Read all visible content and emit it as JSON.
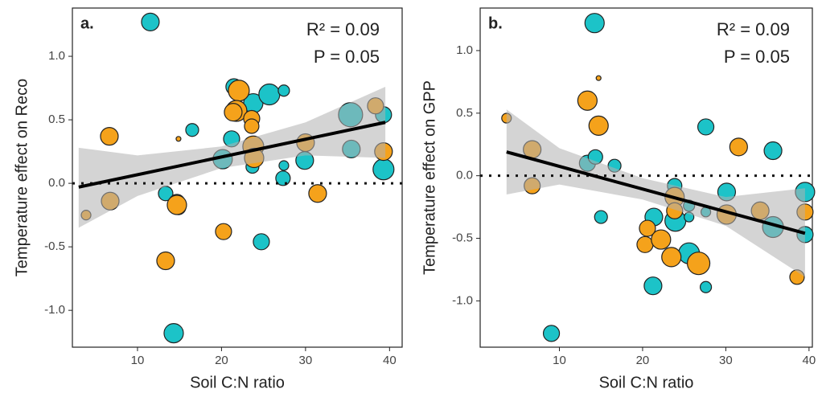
{
  "chart_data": [
    {
      "type": "scatter",
      "label": "a.",
      "ylabel": "Temperature effect on Reco",
      "xlabel": "Soil C:N ratio",
      "annotations": [
        "R² = 0.09",
        "P = 0.05"
      ],
      "xlim": [
        2.25,
        41.5
      ],
      "ylim": [
        -1.29,
        1.38
      ],
      "xticks": [
        10,
        20,
        30,
        40
      ],
      "yticks": [
        {
          "value": -1,
          "label": "-1.0"
        },
        {
          "value": -0.5,
          "label": "-0.5"
        },
        {
          "value": 0,
          "label": "0.0"
        },
        {
          "value": 0.5,
          "label": "0.5"
        },
        {
          "value": 1,
          "label": "1.0"
        }
      ],
      "hline": 0,
      "series": [
        {
          "color": "#1cc3c8",
          "x": [
            11.53,
            21.48,
            23.78,
            25.69,
            27.42,
            16.51,
            21.2,
            20.14,
            23.68,
            27.42,
            27.32,
            29.9,
            35.36,
            35.45,
            39.28,
            39.28,
            13.35,
            14.69,
            14.88,
            24.74,
            14.31
          ],
          "y": [
            1.27,
            0.76,
            0.63,
            0.7,
            0.73,
            0.42,
            0.35,
            0.19,
            0.13,
            0.14,
            0.04,
            0.18,
            0.54,
            0.27,
            0.54,
            0.11,
            -0.08,
            -0.15,
            -0.19,
            -0.46,
            -1.18
          ],
          "sizes": [
            11,
            10,
            12,
            13,
            7,
            8,
            10,
            12,
            8,
            6,
            9,
            11,
            15,
            11,
            10,
            13,
            9,
            10,
            9,
            10,
            12
          ]
        },
        {
          "color": "#f5a21b",
          "x": [
            6.65,
            3.88,
            6.75,
            14.69,
            13.35,
            20.24,
            14.88,
            22.06,
            21.77,
            23.59,
            23.78,
            23.88,
            21.39,
            30,
            31.44,
            38.33,
            39.28,
            23.59
          ],
          "y": [
            0.37,
            -0.25,
            -0.14,
            -0.17,
            -0.61,
            -0.38,
            0.35,
            0.73,
            0.57,
            0.51,
            0.29,
            0.2,
            0.56,
            0.32,
            -0.08,
            0.61,
            0.25,
            0.45
          ],
          "sizes": [
            11,
            6,
            11,
            12,
            11,
            10,
            3,
            13,
            13,
            10,
            13,
            12,
            11,
            11,
            11,
            10,
            11,
            9
          ]
        }
      ],
      "fit": {
        "x": [
          3,
          39.5
        ],
        "y": [
          -0.03,
          0.48
        ]
      },
      "band": {
        "x": [
          3,
          10,
          20,
          30,
          39.5
        ],
        "lower": [
          -0.35,
          -0.1,
          0.12,
          0.22,
          0.2
        ],
        "upper": [
          0.28,
          0.22,
          0.29,
          0.48,
          0.76
        ]
      }
    },
    {
      "type": "scatter",
      "label": "b.",
      "ylabel": "Temperature effect on GPP",
      "xlabel": "Soil C:N ratio",
      "annotations": [
        "R² = 0.09",
        "P = 0.05"
      ],
      "xlim": [
        0.48,
        40.4
      ],
      "ylim": [
        -1.37,
        1.34
      ],
      "xticks": [
        10,
        20,
        30,
        40
      ],
      "yticks": [
        {
          "value": -1,
          "label": "-1.0"
        },
        {
          "value": -0.5,
          "label": "-0.5"
        },
        {
          "value": 0,
          "label": "0.0"
        },
        {
          "value": 0.5,
          "label": "0.5"
        },
        {
          "value": 1,
          "label": "1.0"
        }
      ],
      "hline": 0,
      "series": [
        {
          "color": "#1cc3c8",
          "x": [
            14.23,
            13.37,
            14.33,
            16.63,
            15,
            27.6,
            35.67,
            21.35,
            23.85,
            23.94,
            25.58,
            25.58,
            27.6,
            30.1,
            35.67,
            39.52,
            39.52,
            25.58,
            21.25,
            27.6,
            9.04
          ],
          "y": [
            1.22,
            0.1,
            0.15,
            0.08,
            -0.33,
            0.39,
            0.2,
            -0.33,
            -0.08,
            -0.36,
            -0.24,
            -0.33,
            -0.29,
            -0.13,
            -0.41,
            -0.13,
            -0.47,
            -0.62,
            -0.88,
            -0.89,
            -1.26
          ],
          "sizes": [
            12,
            10,
            9,
            8,
            8,
            10,
            11,
            11,
            9,
            13,
            7,
            6,
            6,
            11,
            13,
            12,
            10,
            13,
            11,
            7,
            10
          ]
        },
        {
          "color": "#f5a21b",
          "x": [
            3.65,
            14.71,
            13.37,
            14.71,
            6.73,
            6.73,
            31.54,
            34.13,
            30.1,
            23.85,
            23.85,
            20.58,
            20.29,
            22.21,
            23.46,
            26.73,
            39.52,
            38.56
          ],
          "y": [
            0.46,
            0.78,
            0.6,
            0.4,
            0.21,
            -0.08,
            0.23,
            -0.28,
            -0.31,
            -0.17,
            -0.28,
            -0.42,
            -0.55,
            -0.51,
            -0.65,
            -0.7,
            -0.29,
            -0.81
          ],
          "sizes": [
            6,
            3,
            12,
            12,
            11,
            10,
            11,
            11,
            12,
            12,
            10,
            10,
            10,
            12,
            12,
            14,
            10,
            9
          ]
        }
      ],
      "fit": {
        "x": [
          3.65,
          39.52
        ],
        "y": [
          0.19,
          -0.46
        ]
      },
      "band": {
        "x": [
          3.65,
          10,
          20,
          30,
          39.52
        ],
        "lower": [
          -0.15,
          -0.07,
          -0.19,
          -0.4,
          -0.81
        ],
        "upper": [
          0.53,
          0.22,
          -0.02,
          -0.17,
          -0.1
        ]
      }
    }
  ]
}
